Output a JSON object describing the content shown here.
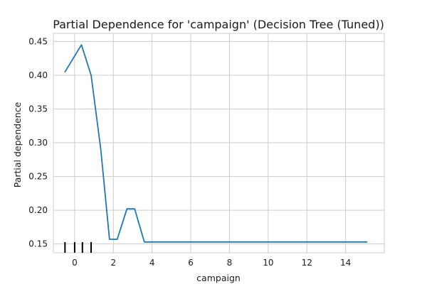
{
  "chart_data": {
    "type": "line",
    "title": "Partial Dependence for 'campaign' (Decision Tree (Tuned))",
    "xlabel": "campaign",
    "ylabel": "Partial dependence",
    "xlim": [
      -1.1,
      16.0
    ],
    "ylim": [
      0.137,
      0.462
    ],
    "xticks": [
      0,
      2,
      4,
      6,
      8,
      10,
      12,
      14
    ],
    "yticks": [
      0.15,
      0.2,
      0.25,
      0.3,
      0.35,
      0.4,
      0.45
    ],
    "ytick_labels": [
      "0.15",
      "0.20",
      "0.25",
      "0.30",
      "0.35",
      "0.40",
      "0.45"
    ],
    "grid": true,
    "line_color": "#1f77b4",
    "series": [
      {
        "x": [
          -0.5,
          0.35,
          0.85,
          1.35,
          1.8,
          2.2,
          2.7,
          3.1,
          3.6,
          15.1
        ],
        "y": [
          0.405,
          0.445,
          0.4,
          0.29,
          0.157,
          0.157,
          0.202,
          0.202,
          0.153,
          0.153
        ]
      }
    ],
    "rug_x": [
      -0.5,
      0.0,
      0.4,
      0.85
    ]
  }
}
